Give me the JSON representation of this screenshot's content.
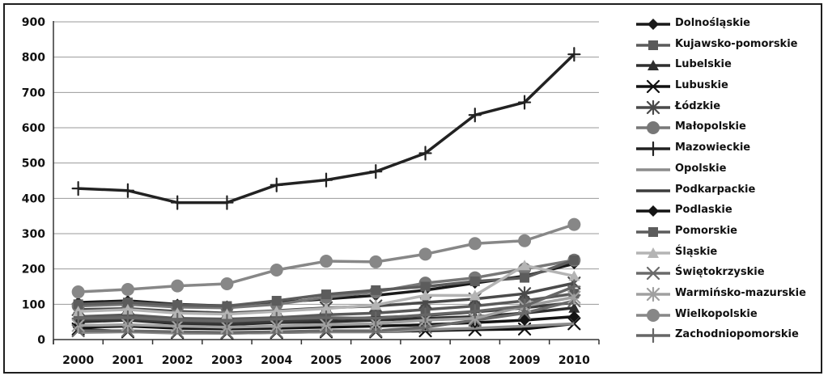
{
  "chart_data": {
    "type": "line",
    "title": "",
    "xlabel": "",
    "ylabel": "",
    "x": [
      "2000",
      "2001",
      "2002",
      "2003",
      "2004",
      "2005",
      "2006",
      "2007",
      "2008",
      "2009",
      "2010"
    ],
    "ylim": [
      0,
      900
    ],
    "yticks": [
      "0",
      "100",
      "200",
      "300",
      "400",
      "500",
      "600",
      "700",
      "800",
      "900"
    ],
    "grid": "horizontal",
    "legend_position": "right",
    "series": [
      {
        "name": "Dolnośląskie",
        "color": "#1a1a1a",
        "marker": "diamond",
        "values": [
          105,
          110,
          100,
          95,
          105,
          115,
          125,
          140,
          160,
          180,
          215
        ]
      },
      {
        "name": "Kujawsko-pomorskie",
        "color": "#5a5a5a",
        "marker": "square",
        "values": [
          65,
          70,
          60,
          58,
          62,
          70,
          75,
          85,
          95,
          110,
          130
        ]
      },
      {
        "name": "Lubelskie",
        "color": "#2e2e2e",
        "marker": "triangle",
        "values": [
          50,
          55,
          45,
          42,
          48,
          50,
          55,
          60,
          65,
          75,
          90
        ]
      },
      {
        "name": "Lubuskie",
        "color": "#111111",
        "marker": "x",
        "values": [
          30,
          22,
          20,
          18,
          20,
          22,
          22,
          25,
          28,
          30,
          45
        ]
      },
      {
        "name": "Łódzkie",
        "color": "#4a4a4a",
        "marker": "asterisk",
        "values": [
          85,
          88,
          80,
          75,
          82,
          90,
          95,
          105,
          115,
          130,
          160
        ]
      },
      {
        "name": "Małopolskie",
        "color": "#777777",
        "marker": "circle",
        "values": [
          95,
          100,
          92,
          90,
          100,
          120,
          135,
          160,
          175,
          200,
          225
        ]
      },
      {
        "name": "Mazowieckie",
        "color": "#222222",
        "marker": "plus",
        "values": [
          428,
          422,
          388,
          388,
          438,
          452,
          476,
          528,
          636,
          672,
          808
        ]
      },
      {
        "name": "Opolskie",
        "color": "#8c8c8c",
        "marker": "none",
        "values": [
          20,
          22,
          18,
          18,
          20,
          22,
          22,
          28,
          32,
          38,
          45
        ]
      },
      {
        "name": "Podkarpackie",
        "color": "#3c3c3c",
        "marker": "none",
        "values": [
          55,
          58,
          50,
          48,
          52,
          58,
          62,
          68,
          78,
          90,
          105
        ]
      },
      {
        "name": "Podlaskie",
        "color": "#141414",
        "marker": "diamond",
        "values": [
          35,
          38,
          32,
          30,
          32,
          35,
          38,
          42,
          48,
          55,
          65
        ]
      },
      {
        "name": "Pomorskie",
        "color": "#5c5c5c",
        "marker": "square",
        "values": [
          100,
          105,
          98,
          95,
          110,
          128,
          140,
          150,
          165,
          175,
          225
        ]
      },
      {
        "name": "Śląskie",
        "color": "#b4b4b4",
        "marker": "triangle",
        "values": [
          80,
          85,
          75,
          72,
          80,
          88,
          98,
          125,
          125,
          210,
          180
        ]
      },
      {
        "name": "Świętokrzyskie",
        "color": "#6a6a6a",
        "marker": "x",
        "values": [
          25,
          25,
          22,
          20,
          22,
          25,
          25,
          35,
          55,
          75,
          110
        ]
      },
      {
        "name": "Warmińsko-mazurskie",
        "color": "#a0a0a0",
        "marker": "asterisk",
        "values": [
          40,
          42,
          38,
          35,
          38,
          42,
          45,
          55,
          60,
          95,
          120
        ]
      },
      {
        "name": "Wielkopolskie",
        "color": "#878787",
        "marker": "circle",
        "values": [
          135,
          142,
          152,
          158,
          197,
          222,
          220,
          242,
          272,
          280,
          326
        ]
      },
      {
        "name": "Zachodniopomorskie",
        "color": "#666666",
        "marker": "plus",
        "values": [
          60,
          62,
          55,
          52,
          58,
          62,
          60,
          70,
          80,
          95,
          150
        ]
      }
    ]
  }
}
